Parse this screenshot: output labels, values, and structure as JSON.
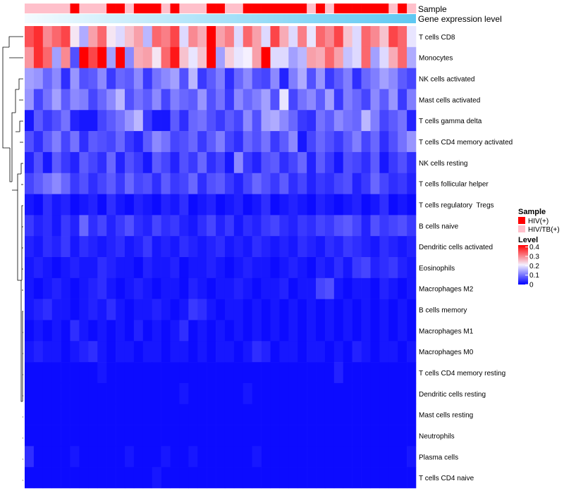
{
  "chart_data": {
    "type": "heatmap",
    "title": "",
    "annotation_tracks": [
      {
        "name": "Sample",
        "label": "Sample"
      },
      {
        "name": "Gene expression level",
        "label": "Gene expression level"
      }
    ],
    "rows": [
      "T cells CD8",
      "Monocytes",
      "NK cells activated",
      "Mast cells activated",
      "T cells gamma delta",
      "T cells CD4 memory activated",
      "NK cells resting",
      "T cells follicular helper",
      "T cells regulatory  Tregs",
      "B cells naive",
      "Dendritic cells activated",
      "Eosinophils",
      "Macrophages M2",
      "B cells memory",
      "Macrophages M1",
      "Macrophages M0",
      "T cells CD4 memory resting",
      "Dendritic cells resting",
      "Mast cells resting",
      "Neutrophils",
      "Plasma cells",
      "T cells CD4 naive"
    ],
    "n_samples": 43,
    "sample_groups": [
      "HIV/TB(+)",
      "HIV/TB(+)",
      "HIV/TB(+)",
      "HIV/TB(+)",
      "HIV/TB(+)",
      "HIV(+)",
      "HIV/TB(+)",
      "HIV/TB(+)",
      "HIV/TB(+)",
      "HIV(+)",
      "HIV(+)",
      "HIV/TB(+)",
      "HIV(+)",
      "HIV(+)",
      "HIV(+)",
      "HIV/TB(+)",
      "HIV(+)",
      "HIV/TB(+)",
      "HIV/TB(+)",
      "HIV/TB(+)",
      "HIV(+)",
      "HIV(+)",
      "HIV/TB(+)",
      "HIV/TB(+)",
      "HIV(+)",
      "HIV(+)",
      "HIV(+)",
      "HIV(+)",
      "HIV(+)",
      "HIV(+)",
      "HIV(+)",
      "HIV/TB(+)",
      "HIV(+)",
      "HIV/TB(+)",
      "HIV(+)",
      "HIV(+)",
      "HIV(+)",
      "HIV(+)",
      "HIV(+)",
      "HIV(+)",
      "HIV/TB(+)",
      "HIV(+)",
      "HIV/TB(+)"
    ],
    "values": [
      [
        0.35,
        0.38,
        0.3,
        0.33,
        0.36,
        0.22,
        0.15,
        0.28,
        0.33,
        0.22,
        0.19,
        0.25,
        0.28,
        0.16,
        0.33,
        0.31,
        0.36,
        0.19,
        0.3,
        0.27,
        0.42,
        0.28,
        0.31,
        0.19,
        0.33,
        0.28,
        0.19,
        0.36,
        0.27,
        0.19,
        0.31,
        0.2,
        0.33,
        0.3,
        0.36,
        0.25,
        0.19,
        0.33,
        0.3,
        0.25,
        0.36,
        0.33,
        0.2
      ],
      [
        0.29,
        0.38,
        0.33,
        0.14,
        0.3,
        0.07,
        0.42,
        0.36,
        0.42,
        0.14,
        0.42,
        0.12,
        0.27,
        0.28,
        0.22,
        0.33,
        0.4,
        0.25,
        0.2,
        0.25,
        0.42,
        0.14,
        0.24,
        0.2,
        0.21,
        0.28,
        0.42,
        0.19,
        0.19,
        0.14,
        0.16,
        0.28,
        0.27,
        0.33,
        0.28,
        0.17,
        0.19,
        0.33,
        0.14,
        0.19,
        0.27,
        0.33,
        0.15
      ],
      [
        0.14,
        0.13,
        0.09,
        0.12,
        0.04,
        0.13,
        0.07,
        0.08,
        0.12,
        0.05,
        0.09,
        0.08,
        0.12,
        0.05,
        0.1,
        0.12,
        0.14,
        0.07,
        0.16,
        0.05,
        0.08,
        0.11,
        0.04,
        0.09,
        0.12,
        0.07,
        0.06,
        0.12,
        0.03,
        0.11,
        0.15,
        0.07,
        0.13,
        0.05,
        0.08,
        0.11,
        0.04,
        0.09,
        0.11,
        0.14,
        0.12,
        0.08,
        0.06
      ],
      [
        0.13,
        0.06,
        0.1,
        0.14,
        0.08,
        0.12,
        0.11,
        0.06,
        0.09,
        0.12,
        0.16,
        0.07,
        0.1,
        0.08,
        0.12,
        0.06,
        0.11,
        0.09,
        0.08,
        0.13,
        0.07,
        0.1,
        0.05,
        0.12,
        0.09,
        0.11,
        0.14,
        0.07,
        0.2,
        0.06,
        0.1,
        0.12,
        0.08,
        0.14,
        0.05,
        0.11,
        0.09,
        0.06,
        0.12,
        0.08,
        0.13,
        0.05,
        0.11
      ],
      [
        0.02,
        0.08,
        0.05,
        0.07,
        0.1,
        0.03,
        0.02,
        0.02,
        0.06,
        0.08,
        0.1,
        0.13,
        0.16,
        0.05,
        0.02,
        0.02,
        0.08,
        0.04,
        0.09,
        0.1,
        0.07,
        0.05,
        0.08,
        0.06,
        0.12,
        0.07,
        0.14,
        0.15,
        0.12,
        0.09,
        0.05,
        0.04,
        0.1,
        0.08,
        0.12,
        0.1,
        0.09,
        0.16,
        0.11,
        0.06,
        0.08,
        0.1,
        0.03
      ],
      [
        0.07,
        0.04,
        0.08,
        0.11,
        0.06,
        0.1,
        0.04,
        0.08,
        0.07,
        0.06,
        0.09,
        0.05,
        0.03,
        0.08,
        0.12,
        0.1,
        0.06,
        0.07,
        0.09,
        0.05,
        0.08,
        0.11,
        0.06,
        0.04,
        0.09,
        0.07,
        0.1,
        0.05,
        0.08,
        0.12,
        0.02,
        0.06,
        0.09,
        0.07,
        0.05,
        0.08,
        0.11,
        0.06,
        0.09,
        0.04,
        0.07,
        0.1,
        0.13
      ],
      [
        0.03,
        0.07,
        0.02,
        0.08,
        0.05,
        0.03,
        0.08,
        0.06,
        0.04,
        0.09,
        0.03,
        0.07,
        0.05,
        0.02,
        0.08,
        0.06,
        0.03,
        0.07,
        0.05,
        0.09,
        0.04,
        0.06,
        0.02,
        0.12,
        0.05,
        0.03,
        0.07,
        0.08,
        0.04,
        0.06,
        0.09,
        0.03,
        0.08,
        0.05,
        0.02,
        0.07,
        0.06,
        0.04,
        0.08,
        0.02,
        0.05,
        0.07,
        0.04
      ],
      [
        0.06,
        0.08,
        0.1,
        0.12,
        0.09,
        0.05,
        0.07,
        0.04,
        0.06,
        0.08,
        0.05,
        0.09,
        0.06,
        0.07,
        0.04,
        0.08,
        0.05,
        0.06,
        0.09,
        0.04,
        0.07,
        0.08,
        0.05,
        0.03,
        0.06,
        0.09,
        0.07,
        0.05,
        0.08,
        0.04,
        0.06,
        0.03,
        0.05,
        0.04,
        0.06,
        0.07,
        0.03,
        0.05,
        0.09,
        0.06,
        0.04,
        0.05,
        0.03
      ],
      [
        0.02,
        0.01,
        0.04,
        0.02,
        0.03,
        0.01,
        0.02,
        0.03,
        0.01,
        0.04,
        0.02,
        0.01,
        0.03,
        0.02,
        0.01,
        0.03,
        0.02,
        0.04,
        0.01,
        0.02,
        0.03,
        0.01,
        0.02,
        0.03,
        0.01,
        0.02,
        0.04,
        0.01,
        0.02,
        0.03,
        0.02,
        0.01,
        0.03,
        0.02,
        0.01,
        0.02,
        0.03,
        0.01,
        0.02,
        0.04,
        0.01,
        0.02,
        0.01
      ],
      [
        0.05,
        0.03,
        0.04,
        0.02,
        0.05,
        0.03,
        0.09,
        0.04,
        0.06,
        0.03,
        0.05,
        0.07,
        0.04,
        0.03,
        0.06,
        0.04,
        0.05,
        0.03,
        0.02,
        0.04,
        0.06,
        0.03,
        0.05,
        0.02,
        0.04,
        0.03,
        0.05,
        0.06,
        0.04,
        0.03,
        0.05,
        0.04,
        0.06,
        0.05,
        0.07,
        0.08,
        0.06,
        0.03,
        0.07,
        0.05,
        0.06,
        0.07,
        0.05
      ],
      [
        0.03,
        0.02,
        0.04,
        0.03,
        0.05,
        0.02,
        0.04,
        0.03,
        0.02,
        0.03,
        0.04,
        0.02,
        0.03,
        0.05,
        0.02,
        0.03,
        0.02,
        0.04,
        0.03,
        0.02,
        0.03,
        0.04,
        0.02,
        0.03,
        0.02,
        0.04,
        0.03,
        0.02,
        0.03,
        0.02,
        0.04,
        0.03,
        0.02,
        0.04,
        0.03,
        0.05,
        0.04,
        0.03,
        0.02,
        0.04,
        0.03,
        0.02,
        0.03
      ],
      [
        0.02,
        0.03,
        0.02,
        0.01,
        0.02,
        0.03,
        0.02,
        0.02,
        0.04,
        0.03,
        0.02,
        0.02,
        0.01,
        0.03,
        0.02,
        0.02,
        0.03,
        0.01,
        0.02,
        0.02,
        0.03,
        0.02,
        0.01,
        0.02,
        0.03,
        0.02,
        0.02,
        0.01,
        0.02,
        0.03,
        0.02,
        0.01,
        0.03,
        0.02,
        0.04,
        0.02,
        0.05,
        0.06,
        0.03,
        0.04,
        0.05,
        0.03,
        0.02
      ],
      [
        0.02,
        0.01,
        0.02,
        0.03,
        0.02,
        0.01,
        0.02,
        0.03,
        0.04,
        0.02,
        0.01,
        0.02,
        0.03,
        0.02,
        0.01,
        0.02,
        0.02,
        0.01,
        0.03,
        0.02,
        0.01,
        0.02,
        0.02,
        0.03,
        0.02,
        0.01,
        0.02,
        0.02,
        0.03,
        0.01,
        0.02,
        0.02,
        0.06,
        0.07,
        0.02,
        0.01,
        0.02,
        0.02,
        0.01,
        0.03,
        0.02,
        0.01,
        0.02
      ],
      [
        0.02,
        0.03,
        0.04,
        0.02,
        0.02,
        0.01,
        0.02,
        0.03,
        0.02,
        0.04,
        0.02,
        0.01,
        0.02,
        0.02,
        0.03,
        0.02,
        0.01,
        0.02,
        0.05,
        0.04,
        0.02,
        0.01,
        0.02,
        0.02,
        0.01,
        0.02,
        0.01,
        0.02,
        0.01,
        0.02,
        0.01,
        0.02,
        0.01,
        0.02,
        0.01,
        0.02,
        0.01,
        0.02,
        0.01,
        0.02,
        0.01,
        0.02,
        0.01
      ],
      [
        0.01,
        0.02,
        0.01,
        0.02,
        0.01,
        0.04,
        0.02,
        0.01,
        0.02,
        0.01,
        0.02,
        0.01,
        0.03,
        0.01,
        0.02,
        0.01,
        0.02,
        0.04,
        0.01,
        0.02,
        0.01,
        0.02,
        0.01,
        0.02,
        0.01,
        0.02,
        0.01,
        0.02,
        0.01,
        0.02,
        0.01,
        0.02,
        0.01,
        0.02,
        0.01,
        0.02,
        0.01,
        0.02,
        0.01,
        0.02,
        0.01,
        0.02,
        0.01
      ],
      [
        0.02,
        0.03,
        0.02,
        0.02,
        0.01,
        0.02,
        0.03,
        0.04,
        0.02,
        0.01,
        0.02,
        0.02,
        0.01,
        0.02,
        0.02,
        0.01,
        0.02,
        0.02,
        0.01,
        0.02,
        0.01,
        0.02,
        0.02,
        0.01,
        0.02,
        0.04,
        0.03,
        0.01,
        0.02,
        0.02,
        0.01,
        0.02,
        0.02,
        0.01,
        0.02,
        0.01,
        0.03,
        0.02,
        0.01,
        0.02,
        0.02,
        0.01,
        0.02
      ],
      [
        0.01,
        0.01,
        0.01,
        0.01,
        0.01,
        0.01,
        0.01,
        0.01,
        0.02,
        0.01,
        0.01,
        0.01,
        0.01,
        0.01,
        0.01,
        0.01,
        0.01,
        0.01,
        0.01,
        0.01,
        0.01,
        0.01,
        0.01,
        0.01,
        0.01,
        0.01,
        0.01,
        0.01,
        0.01,
        0.01,
        0.01,
        0.01,
        0.01,
        0.01,
        0.03,
        0.01,
        0.01,
        0.01,
        0.01,
        0.01,
        0.01,
        0.01,
        0.01
      ],
      [
        0.01,
        0.01,
        0.01,
        0.01,
        0.01,
        0.01,
        0.01,
        0.01,
        0.01,
        0.01,
        0.01,
        0.01,
        0.01,
        0.01,
        0.01,
        0.01,
        0.01,
        0.02,
        0.01,
        0.01,
        0.01,
        0.01,
        0.01,
        0.01,
        0.02,
        0.01,
        0.01,
        0.01,
        0.01,
        0.01,
        0.01,
        0.01,
        0.01,
        0.01,
        0.01,
        0.01,
        0.01,
        0.01,
        0.01,
        0.01,
        0.01,
        0.01,
        0.01
      ],
      [
        0.01,
        0.01,
        0.01,
        0.01,
        0.01,
        0.01,
        0.01,
        0.01,
        0.01,
        0.01,
        0.01,
        0.01,
        0.01,
        0.01,
        0.01,
        0.01,
        0.01,
        0.01,
        0.01,
        0.01,
        0.01,
        0.01,
        0.01,
        0.01,
        0.01,
        0.01,
        0.01,
        0.01,
        0.01,
        0.01,
        0.01,
        0.01,
        0.01,
        0.01,
        0.01,
        0.01,
        0.01,
        0.01,
        0.01,
        0.01,
        0.01,
        0.01,
        0.01
      ],
      [
        0.01,
        0.01,
        0.01,
        0.01,
        0.01,
        0.01,
        0.01,
        0.01,
        0.01,
        0.01,
        0.01,
        0.01,
        0.01,
        0.01,
        0.01,
        0.01,
        0.01,
        0.01,
        0.01,
        0.01,
        0.01,
        0.01,
        0.01,
        0.01,
        0.01,
        0.01,
        0.01,
        0.01,
        0.01,
        0.01,
        0.01,
        0.01,
        0.01,
        0.01,
        0.01,
        0.01,
        0.01,
        0.01,
        0.01,
        0.01,
        0.01,
        0.01,
        0.01
      ],
      [
        0.04,
        0.01,
        0.01,
        0.01,
        0.01,
        0.02,
        0.01,
        0.01,
        0.01,
        0.01,
        0.01,
        0.02,
        0.01,
        0.01,
        0.01,
        0.02,
        0.01,
        0.01,
        0.02,
        0.01,
        0.01,
        0.01,
        0.01,
        0.01,
        0.01,
        0.02,
        0.01,
        0.01,
        0.01,
        0.01,
        0.01,
        0.01,
        0.01,
        0.01,
        0.01,
        0.01,
        0.01,
        0.01,
        0.01,
        0.01,
        0.01,
        0.01,
        0.02
      ],
      [
        0.01,
        0.01,
        0.01,
        0.01,
        0.01,
        0.01,
        0.01,
        0.01,
        0.01,
        0.01,
        0.01,
        0.01,
        0.01,
        0.01,
        0.02,
        0.01,
        0.01,
        0.01,
        0.01,
        0.01,
        0.01,
        0.01,
        0.01,
        0.01,
        0.01,
        0.01,
        0.01,
        0.01,
        0.01,
        0.01,
        0.01,
        0.01,
        0.01,
        0.01,
        0.01,
        0.01,
        0.01,
        0.01,
        0.01,
        0.01,
        0.01,
        0.01,
        0.01
      ]
    ],
    "color_scale": {
      "min": 0,
      "max": 0.42,
      "stops": [
        {
          "value": 0,
          "color": "#0000ff"
        },
        {
          "value": 0.21,
          "color": "#f5f0ff"
        },
        {
          "value": 0.42,
          "color": "#ff0000"
        }
      ]
    },
    "legends": {
      "sample": {
        "title": "Sample",
        "items": [
          {
            "label": "HIV(+)",
            "color": "#ff0000"
          },
          {
            "label": "HIV/TB(+)",
            "color": "#ffc0cb"
          }
        ]
      },
      "level": {
        "title": "Level",
        "ticks": [
          "0.4",
          "0.3",
          "0.2",
          "0.1",
          "0"
        ],
        "tick_values": [
          0.4,
          0.3,
          0.2,
          0.1,
          0
        ]
      }
    },
    "gene_expression_gradient": {
      "from": "#f4fbff",
      "to": "#5ec8f2"
    }
  }
}
